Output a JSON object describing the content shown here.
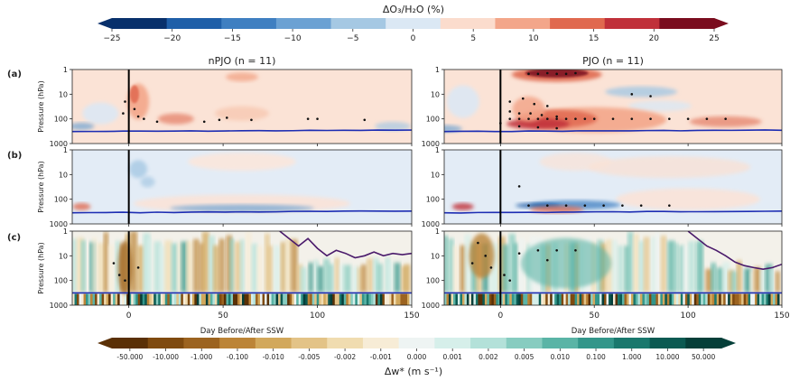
{
  "chart_data": {
    "type": "heatmap",
    "top_colorbar": {
      "label": "ΔO₃/H₂O (%)",
      "ticks": [
        "−25",
        "−20",
        "−15",
        "−10",
        "−5",
        "0",
        "5",
        "10",
        "15",
        "20",
        "25"
      ],
      "colors": [
        "#08306b",
        "#1f5fa8",
        "#3f7fc1",
        "#6ba1d3",
        "#a5c8e3",
        "#dbe8f4",
        "#fbdccd",
        "#f3a68a",
        "#e0694f",
        "#c0303a",
        "#7a0c1e"
      ]
    },
    "bottom_colorbar": {
      "label": "Δw* (m s⁻¹)",
      "ticks": [
        "-50.000",
        "-10.000",
        "-1.000",
        "-0.100",
        "-0.010",
        "-0.005",
        "-0.002",
        "-0.001",
        "0.000",
        "0.001",
        "0.002",
        "0.005",
        "0.010",
        "0.100",
        "1.000",
        "10.000",
        "50.000"
      ],
      "colors": [
        "#5a3006",
        "#7f4a0f",
        "#9c6320",
        "#bc8437",
        "#d2a85c",
        "#e3c387",
        "#f0dcb0",
        "#f7ecd6",
        "#eef4f3",
        "#d6efea",
        "#b3e1d9",
        "#87ccc0",
        "#5ab4a6",
        "#33968a",
        "#1a786d",
        "#0b5a52",
        "#053f39"
      ]
    },
    "columns": [
      {
        "title": "nPJO (n = 11)",
        "xlabel": "Day Before/After SSW"
      },
      {
        "title": "PJO (n = 11)",
        "xlabel": "Day Before/After SSW"
      }
    ],
    "rows": [
      {
        "label": "(a)",
        "quantity": "ΔO3"
      },
      {
        "label": "(b)",
        "quantity": "ΔH2O"
      },
      {
        "label": "(c)",
        "quantity": "Δw*"
      }
    ],
    "ylabel": "Pressure (hPa)",
    "y_ticks": [
      "1",
      "10",
      "100",
      "1000"
    ],
    "y_scale": "log",
    "ylim": [
      1000,
      1
    ],
    "x_ticks": [
      0,
      50,
      100,
      150
    ],
    "xlim": [
      -30,
      150
    ],
    "ssw_day": 0,
    "tropopause_hpa_ab": 300,
    "tropopause_hpa_c": 320,
    "contour_nPJO_c": {
      "x": [
        80,
        85,
        90,
        95,
        100,
        105,
        110,
        115,
        120,
        125,
        130,
        135,
        140,
        145,
        150
      ],
      "p": [
        1,
        2,
        4,
        2,
        5,
        10,
        6,
        8,
        12,
        10,
        7,
        10,
        8,
        9,
        8
      ]
    },
    "contour_PJO_c": {
      "x": [
        100,
        105,
        110,
        115,
        120,
        125,
        130,
        135,
        140,
        145,
        150
      ],
      "p": [
        1,
        2,
        4,
        6,
        10,
        18,
        25,
        30,
        35,
        30,
        22
      ]
    }
  }
}
